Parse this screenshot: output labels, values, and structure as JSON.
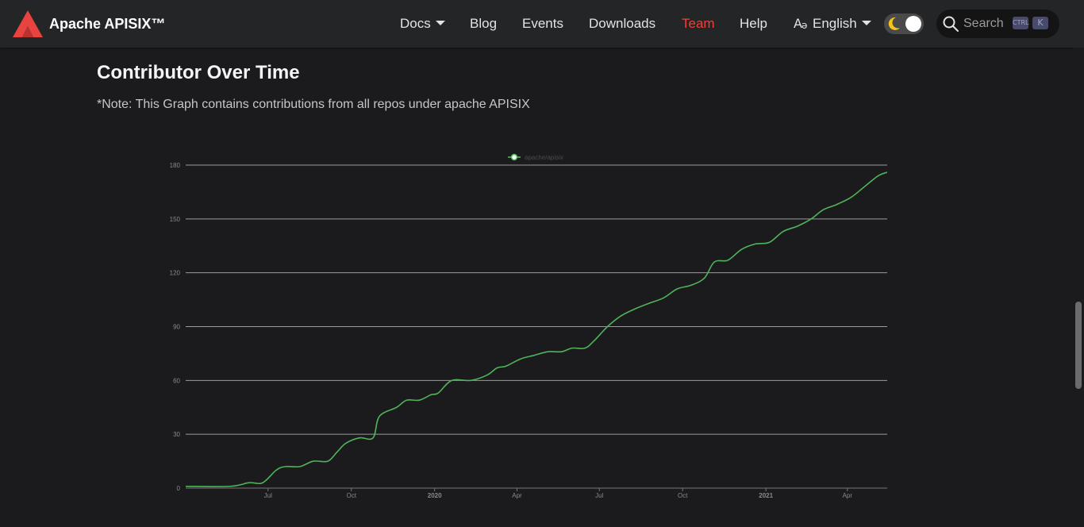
{
  "navbar": {
    "brand": "Apache APISIX™",
    "items": [
      {
        "label": "Docs",
        "dropdown": true
      },
      {
        "label": "Blog"
      },
      {
        "label": "Events"
      },
      {
        "label": "Downloads"
      },
      {
        "label": "Team",
        "active": true
      },
      {
        "label": "Help"
      },
      {
        "label": "English",
        "dropdown": true,
        "icon": "translate-icon"
      }
    ],
    "theme_toggle_icon": "moon-icon",
    "search": {
      "placeholder": "Search",
      "shortcut": [
        "CTRL",
        "K"
      ]
    }
  },
  "page": {
    "title": "Contributor Over Time",
    "note": "*Note: This Graph contains contributions from all repos under apache APISIX"
  },
  "colors": {
    "accent": "#e8433e",
    "background": "#1b1b1d",
    "navbar": "#242526",
    "line": "#4fb35a"
  },
  "chart_data": {
    "type": "line",
    "title": "",
    "xlabel": "",
    "ylabel": "",
    "legend": "top-center",
    "grid": true,
    "ylim": [
      0,
      180
    ],
    "yticks": [
      0,
      30,
      60,
      90,
      120,
      150,
      180
    ],
    "xlim": [
      "2019-04-01",
      "2021-05-15"
    ],
    "xticks": [
      {
        "date": "2019-07-01",
        "label": "Jul",
        "bold": false
      },
      {
        "date": "2019-10-01",
        "label": "Oct",
        "bold": false
      },
      {
        "date": "2020-01-01",
        "label": "2020",
        "bold": true
      },
      {
        "date": "2020-04-01",
        "label": "Apr",
        "bold": false
      },
      {
        "date": "2020-07-01",
        "label": "Jul",
        "bold": false
      },
      {
        "date": "2020-10-01",
        "label": "Oct",
        "bold": false
      },
      {
        "date": "2021-01-01",
        "label": "2021",
        "bold": true
      },
      {
        "date": "2021-04-01",
        "label": "Apr",
        "bold": false
      }
    ],
    "series": [
      {
        "name": "apache/apisix",
        "points": [
          [
            "2019-04-01",
            1
          ],
          [
            "2019-05-20",
            1
          ],
          [
            "2019-06-10",
            3
          ],
          [
            "2019-06-25",
            3
          ],
          [
            "2019-07-10",
            10
          ],
          [
            "2019-07-20",
            12
          ],
          [
            "2019-08-05",
            12
          ],
          [
            "2019-08-20",
            15
          ],
          [
            "2019-09-05",
            15
          ],
          [
            "2019-09-15",
            20
          ],
          [
            "2019-09-25",
            25
          ],
          [
            "2019-10-10",
            28
          ],
          [
            "2019-10-25",
            28
          ],
          [
            "2019-11-01",
            40
          ],
          [
            "2019-11-20",
            45
          ],
          [
            "2019-12-01",
            49
          ],
          [
            "2019-12-15",
            49
          ],
          [
            "2019-12-28",
            52
          ],
          [
            "2020-01-05",
            53
          ],
          [
            "2020-01-20",
            60
          ],
          [
            "2020-02-10",
            60
          ],
          [
            "2020-02-28",
            63
          ],
          [
            "2020-03-10",
            67
          ],
          [
            "2020-03-20",
            68
          ],
          [
            "2020-04-05",
            72
          ],
          [
            "2020-04-20",
            74
          ],
          [
            "2020-05-05",
            76
          ],
          [
            "2020-05-20",
            76
          ],
          [
            "2020-06-01",
            78
          ],
          [
            "2020-06-15",
            78
          ],
          [
            "2020-06-25",
            82
          ],
          [
            "2020-07-10",
            90
          ],
          [
            "2020-07-25",
            96
          ],
          [
            "2020-08-10",
            100
          ],
          [
            "2020-08-25",
            103
          ],
          [
            "2020-09-10",
            106
          ],
          [
            "2020-09-25",
            111
          ],
          [
            "2020-10-10",
            113
          ],
          [
            "2020-10-25",
            117
          ],
          [
            "2020-11-05",
            126
          ],
          [
            "2020-11-20",
            127
          ],
          [
            "2020-12-05",
            133
          ],
          [
            "2020-12-20",
            136
          ],
          [
            "2021-01-05",
            137
          ],
          [
            "2021-01-20",
            143
          ],
          [
            "2021-02-05",
            146
          ],
          [
            "2021-02-20",
            150
          ],
          [
            "2021-03-05",
            155
          ],
          [
            "2021-03-20",
            158
          ],
          [
            "2021-04-05",
            162
          ],
          [
            "2021-04-20",
            168
          ],
          [
            "2021-05-05",
            174
          ],
          [
            "2021-05-15",
            176
          ]
        ]
      }
    ]
  }
}
